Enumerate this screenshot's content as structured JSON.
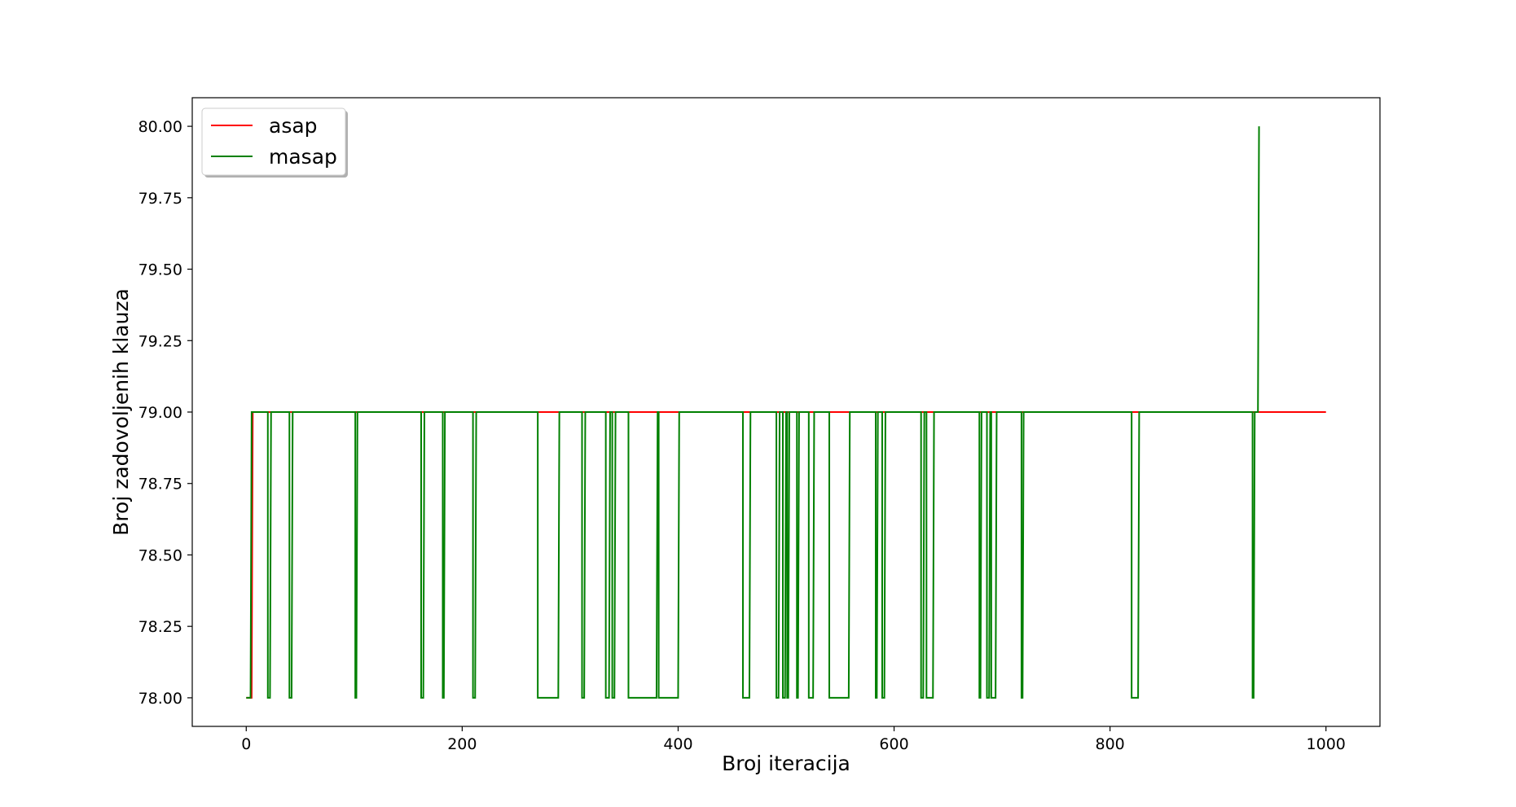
{
  "chart_data": {
    "type": "line",
    "title": "",
    "xlabel": "Broj iteracija",
    "ylabel": "Broj zadovoljenih klauza",
    "xlim": [
      -50,
      1050
    ],
    "ylim": [
      77.9,
      80.1
    ],
    "xticks": [
      0,
      200,
      400,
      600,
      800,
      1000
    ],
    "yticks": [
      78.0,
      78.25,
      78.5,
      78.75,
      79.0,
      79.25,
      79.5,
      79.75,
      80.0
    ],
    "xtick_labels": [
      "0",
      "200",
      "400",
      "600",
      "800",
      "1000"
    ],
    "ytick_labels": [
      "78.00",
      "78.25",
      "78.50",
      "78.75",
      "79.00",
      "79.25",
      "79.50",
      "79.75",
      "80.00"
    ],
    "grid": false,
    "legend": {
      "placement": "top-left"
    },
    "series": [
      {
        "name": "asap",
        "color": "#ff0000",
        "points": [
          [
            0,
            78
          ],
          [
            5,
            78
          ],
          [
            6,
            79
          ],
          [
            1000,
            79
          ]
        ]
      },
      {
        "name": "masap",
        "color": "#008000",
        "dips": [
          [
            0,
            4
          ],
          [
            20,
            22
          ],
          [
            40,
            42
          ],
          [
            101,
            102
          ],
          [
            162,
            164
          ],
          [
            182,
            183
          ],
          [
            210,
            212
          ],
          [
            270,
            278
          ],
          [
            279,
            289
          ],
          [
            311,
            313
          ],
          [
            333,
            336
          ],
          [
            339,
            341
          ],
          [
            354,
            359
          ],
          [
            360,
            380
          ],
          [
            382,
            400
          ],
          [
            460,
            466
          ],
          [
            491,
            493
          ],
          [
            497,
            499
          ],
          [
            501,
            502
          ],
          [
            510,
            511
          ],
          [
            521,
            525
          ],
          [
            540,
            542
          ],
          [
            543,
            558
          ],
          [
            583,
            584
          ],
          [
            589,
            591
          ],
          [
            625,
            627
          ],
          [
            630,
            636
          ],
          [
            679,
            680
          ],
          [
            686,
            688
          ],
          [
            690,
            694
          ],
          [
            718,
            719
          ],
          [
            820,
            826
          ],
          [
            932,
            933
          ]
        ],
        "spike": [
          937,
          938,
          80
        ],
        "end_x": 938,
        "base": 79,
        "low": 78
      }
    ]
  }
}
